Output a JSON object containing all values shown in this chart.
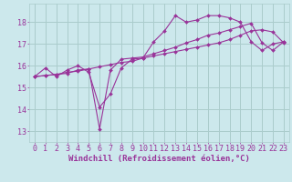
{
  "background_color": "#cce8ec",
  "grid_color": "#aacccc",
  "line_color": "#993399",
  "marker_color": "#993399",
  "xlabel": "Windchill (Refroidissement éolien,°C)",
  "xlabel_color": "#993399",
  "xlabel_fontsize": 6.5,
  "tick_color": "#993399",
  "tick_fontsize": 6.0,
  "ylim": [
    12.5,
    18.85
  ],
  "xlim": [
    -0.5,
    23.5
  ],
  "yticks": [
    13,
    14,
    15,
    16,
    17,
    18
  ],
  "xticks": [
    0,
    1,
    2,
    3,
    4,
    5,
    6,
    7,
    8,
    9,
    10,
    11,
    12,
    13,
    14,
    15,
    16,
    17,
    18,
    19,
    20,
    21,
    22,
    23
  ],
  "line1_y": [
    15.5,
    15.9,
    15.5,
    15.8,
    16.0,
    15.7,
    14.1,
    14.7,
    15.9,
    16.3,
    16.35,
    17.1,
    17.6,
    18.3,
    18.0,
    18.1,
    18.3,
    18.3,
    18.2,
    18.0,
    17.1,
    16.7,
    17.0,
    17.1
  ],
  "line2_y": [
    15.5,
    15.55,
    15.6,
    15.65,
    15.8,
    15.85,
    13.1,
    15.8,
    16.3,
    16.35,
    16.4,
    16.55,
    16.7,
    16.85,
    17.05,
    17.2,
    17.4,
    17.5,
    17.65,
    17.8,
    17.95,
    17.05,
    16.7,
    17.1
  ],
  "line3_y": [
    15.5,
    15.55,
    15.6,
    15.7,
    15.75,
    15.85,
    15.95,
    16.05,
    16.15,
    16.2,
    16.35,
    16.45,
    16.55,
    16.65,
    16.75,
    16.85,
    16.95,
    17.05,
    17.2,
    17.4,
    17.6,
    17.65,
    17.55,
    17.05
  ]
}
